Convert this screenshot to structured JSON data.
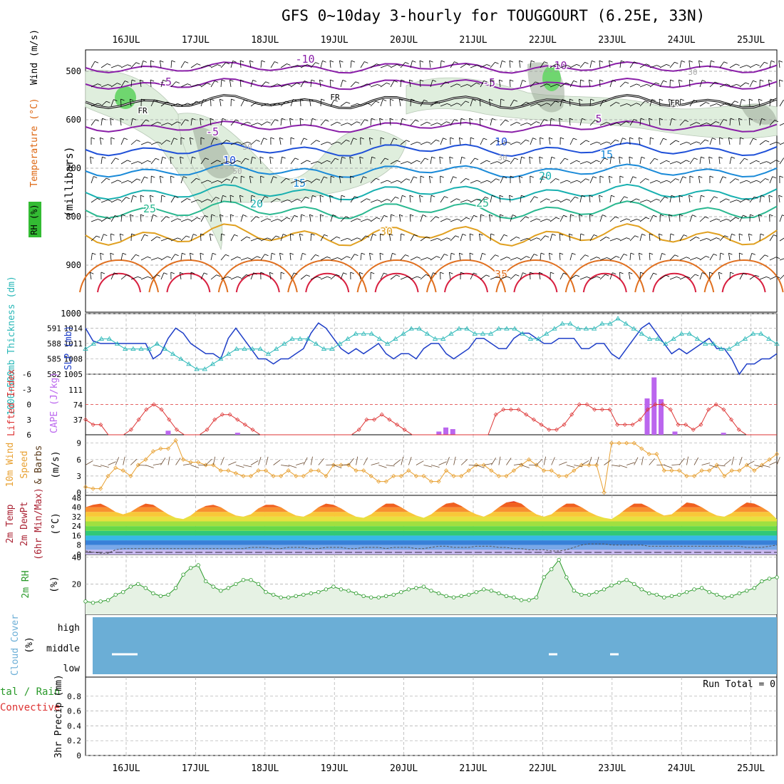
{
  "title": "GFS 0~10day 3-hourly for TOUGGOURT (6.25E, 33N)",
  "dates": [
    "16JUL",
    "17JUL",
    "18JUL",
    "19JUL",
    "20JUL",
    "21JUL",
    "22JUL",
    "23JUL",
    "24JUL",
    "25JUL"
  ],
  "colors": {
    "rh_fill": "#dfeedd",
    "rh_dark": "#9aaa98",
    "rh_green": "#6fd66f",
    "slp": "#1f3fc8",
    "thickness": "#2ab8b8",
    "lifted": "#dd3333",
    "cape": "#bb66ee",
    "wind": "#e8a030",
    "barb": "#6a4a30",
    "rh2m": "#2a9a2a",
    "cloud": "#6baed6"
  },
  "upper_air": {
    "ylabel": "(millibars)",
    "legend": {
      "rh": "RH (%)",
      "temperature": "Temperature (°C)",
      "wind": "Wind (m/s)"
    },
    "pressure_ticks": [
      "500",
      "600",
      "700",
      "800",
      "900",
      "1000"
    ],
    "temp_labels": [
      "-10",
      "-10",
      "-5",
      "-5",
      "FR",
      "FR",
      "FR",
      "-5",
      "5",
      "10",
      "10",
      "15",
      "15",
      "20",
      "20",
      "25",
      "25",
      "30",
      "35"
    ],
    "rh_labels": [
      "30",
      "30",
      "30",
      "50"
    ]
  },
  "chart_data": [
    {
      "type": "line",
      "name": "SLP",
      "ylabel": "SLP (mb)",
      "yticks": [
        1005,
        1008,
        1011,
        1014
      ],
      "ylim": [
        1005,
        1016
      ],
      "values": [
        1014,
        1011.5,
        1011,
        1011,
        1011,
        1011,
        1011,
        1011,
        1011,
        1008,
        1009,
        1012,
        1014,
        1013,
        1011,
        1010,
        1009,
        1009,
        1008,
        1012,
        1014,
        1012,
        1010,
        1008,
        1008,
        1007,
        1008,
        1008,
        1009,
        1010,
        1013,
        1015,
        1014,
        1012,
        1010,
        1009,
        1010,
        1009,
        1010,
        1011,
        1009,
        1008,
        1009,
        1009,
        1008,
        1010,
        1011,
        1011,
        1009,
        1008,
        1009,
        1010,
        1012,
        1012,
        1011,
        1010,
        1010,
        1012,
        1013,
        1013,
        1012,
        1011,
        1011,
        1012,
        1012,
        1012,
        1010,
        1010,
        1011,
        1011,
        1009,
        1008,
        1010,
        1012,
        1014,
        1015,
        1013,
        1011,
        1009,
        1010,
        1009,
        1010,
        1011,
        1012,
        1010,
        1010,
        1008,
        1005,
        1007,
        1007,
        1008,
        1008,
        1009
      ]
    },
    {
      "type": "line",
      "name": "1000-500mb Thickness",
      "ylabel": "1000-500mb Thickness (dm)",
      "yticks": [
        582,
        585,
        588,
        591
      ],
      "values": [
        585,
        586,
        587,
        587,
        586,
        585,
        585,
        585,
        585,
        586,
        585,
        584,
        583,
        582,
        581,
        581,
        582,
        583,
        584,
        585,
        585,
        585,
        585,
        584,
        585,
        586,
        587,
        587,
        587,
        586,
        585,
        585,
        586,
        587,
        588,
        588,
        588,
        587,
        586,
        587,
        588,
        589,
        589,
        588,
        587,
        587,
        588,
        589,
        589,
        588,
        588,
        588,
        589,
        589,
        589,
        588,
        587,
        587,
        588,
        589,
        590,
        590,
        589,
        589,
        589,
        590,
        590,
        591,
        590,
        589,
        588,
        587,
        587,
        586,
        587,
        588,
        588,
        587,
        586,
        586,
        585,
        585,
        586,
        587,
        588,
        588,
        587,
        586
      ]
    },
    {
      "type": "line",
      "name": "Lifted Index",
      "ylabel": "Lifted Index",
      "yticks": [
        -6,
        -3,
        0,
        3,
        6
      ],
      "ylim": [
        6,
        -6
      ],
      "values": [
        3,
        4,
        4,
        6,
        6,
        6,
        5,
        3,
        1,
        0,
        1,
        3,
        5,
        6,
        6,
        6,
        5,
        3,
        2,
        2,
        3,
        4,
        5,
        6,
        6,
        6,
        6,
        6,
        6,
        6,
        6,
        6,
        6,
        6,
        6,
        6,
        5,
        3,
        3,
        2,
        3,
        4,
        5,
        6,
        6,
        6,
        6,
        6,
        6,
        6,
        6,
        6,
        6,
        6,
        2,
        1,
        1,
        1,
        2,
        3,
        4,
        5,
        5,
        4,
        2,
        0,
        0,
        1,
        1,
        1,
        4,
        4,
        4,
        3,
        1,
        0,
        0,
        1,
        4,
        4,
        5,
        4,
        1,
        0,
        1,
        3,
        5,
        6,
        6,
        6,
        6,
        6
      ]
    },
    {
      "type": "bar",
      "name": "CAPE",
      "ylabel": "CAPE (J/kg)",
      "yticks": [
        37,
        74,
        111
      ],
      "bars": [
        {
          "date_index": 0.6,
          "value": 10
        },
        {
          "date_index": 1.6,
          "value": 5
        },
        {
          "date_index": 4.5,
          "value": 8
        },
        {
          "date_index": 4.6,
          "value": 18
        },
        {
          "date_index": 4.7,
          "value": 14
        },
        {
          "date_index": 7.5,
          "value": 90
        },
        {
          "date_index": 7.6,
          "value": 142
        },
        {
          "date_index": 7.7,
          "value": 88
        },
        {
          "date_index": 7.9,
          "value": 8
        },
        {
          "date_index": 8.6,
          "value": 5
        }
      ]
    },
    {
      "type": "line",
      "name": "10m Wind Speed",
      "ylabel": "10m Wind Speed & Barbs (m/s)",
      "yticks": [
        0,
        3,
        6,
        9
      ],
      "ylim": [
        0,
        10
      ],
      "values": [
        1,
        0.7,
        0.7,
        3,
        4.5,
        4,
        3,
        5,
        6,
        7.5,
        8,
        8,
        9.5,
        6,
        5.5,
        5.5,
        5,
        5,
        4,
        4,
        3.5,
        3,
        3,
        4,
        4,
        3,
        3,
        4,
        3,
        3,
        4,
        4,
        3,
        5,
        5,
        5,
        4,
        4,
        3,
        2,
        2,
        3,
        3,
        4,
        3,
        3,
        2,
        2,
        4,
        3,
        3,
        4,
        5,
        5,
        4,
        3,
        3,
        4,
        5,
        6,
        5,
        4,
        4,
        3,
        3,
        4,
        5,
        5,
        5,
        0,
        9,
        9,
        9,
        9,
        8,
        7,
        7,
        4,
        4,
        4,
        3,
        3,
        4,
        4,
        5,
        3,
        4,
        4,
        5,
        4,
        5,
        6,
        7
      ]
    },
    {
      "type": "area",
      "name": "2m Temp",
      "ylabel": "2m Temp / 2m DewPt (6hr Min/Max) (°C)",
      "yticks": [
        0,
        8,
        16,
        24,
        32,
        40,
        48
      ],
      "values": [
        40,
        42,
        43,
        40,
        36,
        34,
        36,
        40,
        43,
        42,
        38,
        34,
        31,
        30,
        33,
        38,
        41,
        42,
        40,
        36,
        33,
        32,
        34,
        39,
        42,
        42,
        40,
        36,
        33,
        32,
        35,
        40,
        43,
        42,
        39,
        35,
        32,
        31,
        34,
        39,
        43,
        43,
        40,
        36,
        33,
        31,
        34,
        39,
        43,
        44,
        41,
        37,
        34,
        32,
        35,
        40,
        44,
        45,
        43,
        38,
        34,
        32,
        34,
        39,
        43,
        43,
        40,
        36,
        33,
        31,
        30,
        34,
        39,
        43,
        43,
        40,
        36,
        33,
        34,
        39,
        44,
        43,
        40,
        36,
        33,
        32,
        35,
        40,
        44,
        43,
        40,
        36,
        30
      ]
    },
    {
      "type": "line",
      "name": "2m DewPt",
      "values": [
        3,
        2,
        1,
        1,
        4,
        5,
        5,
        5,
        5,
        5,
        5,
        5,
        5,
        5,
        5,
        5,
        5,
        5,
        5,
        5,
        5,
        5,
        6,
        6,
        6,
        5,
        5,
        6,
        6,
        6,
        5,
        5,
        6,
        6,
        6,
        5,
        5,
        6,
        6,
        6,
        5,
        6,
        6,
        6,
        5,
        5,
        6,
        7,
        7,
        6,
        6,
        6,
        7,
        7,
        7,
        6,
        6,
        5,
        5,
        4,
        4,
        4,
        3,
        3,
        4,
        6,
        8,
        9,
        9,
        9,
        8,
        8,
        8,
        8,
        8,
        7,
        7,
        7,
        7,
        7,
        7,
        7,
        7,
        7,
        7,
        7,
        7,
        7,
        6,
        6,
        6,
        7,
        8
      ]
    },
    {
      "type": "area",
      "name": "2m RH",
      "ylabel": "2m RH (%)",
      "yticks": [
        20,
        40
      ],
      "values": [
        7,
        6,
        7,
        8,
        12,
        14,
        18,
        20,
        17,
        13,
        11,
        12,
        17,
        27,
        32,
        34,
        22,
        18,
        15,
        17,
        20,
        23,
        23,
        20,
        14,
        12,
        10,
        10,
        11,
        12,
        13,
        14,
        16,
        18,
        16,
        15,
        13,
        11,
        10,
        10,
        11,
        12,
        14,
        16,
        17,
        18,
        15,
        13,
        11,
        10,
        11,
        12,
        14,
        16,
        15,
        13,
        11,
        10,
        8,
        8,
        10,
        25,
        31,
        38,
        25,
        15,
        12,
        12,
        14,
        16,
        19,
        21,
        23,
        20,
        16,
        13,
        12,
        10,
        11,
        12,
        14,
        16,
        17,
        14,
        12,
        10,
        11,
        13,
        15,
        17,
        22,
        24,
        25
      ]
    },
    {
      "type": "heatmap",
      "name": "Cloud Cover",
      "ylabel": "Cloud Cover (%)",
      "levels": [
        "high",
        "middle",
        "low"
      ],
      "marks": [
        {
          "date_index": 0,
          "level": "middle"
        },
        {
          "date_index": 6,
          "level": "low"
        },
        {
          "date_index": 7,
          "level": "low"
        }
      ]
    },
    {
      "type": "bar",
      "name": "3hr Precip",
      "ylabel": "3hr Precip (mm)",
      "legend": [
        "Total / Rain",
        "Convective"
      ],
      "yticks": [
        0,
        0.2,
        0.4,
        0.6,
        0.8
      ],
      "ylim": [
        0,
        1
      ],
      "values": []
    }
  ],
  "panels": {
    "slp_label": "SLP (mb)",
    "thick_label": "1000~500mb Thickness (dm)",
    "lifted_label": "Lifted Index",
    "cape_label": "CAPE (J/kg)",
    "wind_labels": [
      "10m Wind",
      "Speed",
      "& Barbs"
    ],
    "wind_unit": "(m/s)",
    "temp_labels": [
      "2m Temp",
      "2m DewPt",
      "(6hr Min/Max)"
    ],
    "temp_unit": "(°C)",
    "rh_label": "2m RH",
    "rh_unit": "(%)",
    "cloud_label": "Cloud Cover",
    "cloud_unit": "(%)",
    "precip_labels": [
      "tal / Rain",
      "Convective"
    ],
    "precip_unit": "3hr Precip (mm)",
    "run_total": "Run Total = 0"
  }
}
